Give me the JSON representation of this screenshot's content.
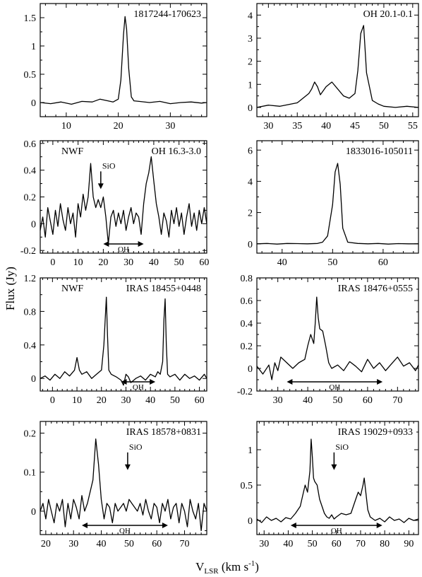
{
  "ylabel": "Flux (Jy)",
  "xlabel_main": "V",
  "xlabel_sub": "LSR",
  "xlabel_unit": " (km s",
  "xlabel_sup": "-1",
  "xlabel_end": ")",
  "chart_data": [
    {
      "type": "line",
      "title": "1817244-170623",
      "tag": "",
      "xlim": [
        5,
        37
      ],
      "ylim": [
        -0.25,
        1.75
      ],
      "xticks": [
        10,
        20,
        30
      ],
      "yticks": [
        0,
        0.5,
        1,
        1.5
      ],
      "series": [
        {
          "x": [
            5,
            7,
            9,
            11,
            13,
            15,
            16.5,
            18,
            19,
            20,
            20.5,
            21,
            21.3,
            21.6,
            22,
            22.5,
            23,
            24,
            26,
            28,
            30,
            32,
            34,
            36,
            37
          ],
          "y": [
            0,
            -0.02,
            0.01,
            -0.03,
            0.02,
            0.01,
            0.06,
            0.03,
            0.01,
            0.06,
            0.4,
            1.2,
            1.52,
            1.3,
            0.6,
            0.1,
            0.03,
            0.02,
            0,
            0.02,
            -0.02,
            0,
            0.01,
            -0.01,
            0
          ]
        }
      ],
      "markers": [],
      "oh": null
    },
    {
      "type": "line",
      "title": "OH 20.1-0.1",
      "tag": "",
      "xlim": [
        28,
        56
      ],
      "ylim": [
        -0.4,
        4.5
      ],
      "xticks": [
        30,
        35,
        40,
        45,
        50,
        55
      ],
      "yticks": [
        0,
        1,
        2,
        3,
        4
      ],
      "series": [
        {
          "x": [
            28,
            30,
            32,
            34,
            35,
            36,
            37,
            37.5,
            38,
            38.5,
            39,
            40,
            41,
            42,
            43,
            44,
            45,
            45.5,
            46,
            46.5,
            47,
            48,
            49,
            50,
            52,
            54,
            56
          ],
          "y": [
            0,
            0.1,
            0.05,
            0.15,
            0.2,
            0.4,
            0.6,
            0.8,
            1.1,
            0.9,
            0.55,
            0.9,
            1.1,
            0.8,
            0.5,
            0.4,
            0.6,
            1.6,
            3.2,
            3.55,
            1.5,
            0.3,
            0.15,
            0.05,
            0,
            0.05,
            0
          ]
        }
      ],
      "markers": [],
      "oh": null
    },
    {
      "type": "line",
      "title": "OH 16.3-3.0",
      "tag": "NWF",
      "xlim": [
        -5,
        61
      ],
      "ylim": [
        -0.22,
        0.62
      ],
      "xticks": [
        0,
        10,
        20,
        30,
        40,
        50,
        60
      ],
      "yticks": [
        -0.2,
        0,
        0.2,
        0.4,
        0.6
      ],
      "series": [
        {
          "x": [
            -5,
            -4,
            -3,
            -2,
            -1,
            0,
            1,
            2,
            3,
            4,
            5,
            6,
            7,
            8,
            9,
            10,
            11,
            12,
            13,
            14,
            15,
            16,
            17,
            18,
            19,
            20,
            21,
            22,
            23,
            24,
            25,
            26,
            27,
            28,
            29,
            30,
            31,
            32,
            33,
            34,
            35,
            36,
            37,
            38,
            39,
            40,
            41,
            42,
            43,
            44,
            45,
            46,
            47,
            48,
            49,
            50,
            51,
            52,
            53,
            54,
            55,
            56,
            57,
            58,
            59,
            60,
            61
          ],
          "y": [
            -0.05,
            0.05,
            -0.1,
            0.12,
            0.02,
            -0.08,
            0.1,
            -0.02,
            0.15,
            0.03,
            -0.05,
            0.12,
            0.0,
            0.08,
            -0.1,
            0.15,
            0.05,
            0.22,
            0.1,
            0.2,
            0.45,
            0.2,
            0.12,
            0.18,
            0.12,
            0.2,
            0.05,
            -0.15,
            0.05,
            0.1,
            -0.02,
            0.08,
            0.0,
            0.1,
            -0.05,
            0.05,
            0.12,
            0.0,
            0.08,
            0.05,
            -0.08,
            0.15,
            0.3,
            0.38,
            0.5,
            0.32,
            0.15,
            0.05,
            -0.08,
            0.08,
            0.02,
            -0.1,
            0.1,
            0.0,
            0.12,
            -0.02,
            0.08,
            -0.08,
            0.05,
            0.15,
            -0.02,
            0.08,
            -0.05,
            0.1,
            0.0,
            0.12,
            0.0
          ]
        }
      ],
      "markers": [
        {
          "label": "SiO",
          "x": 19
        }
      ],
      "oh": {
        "label": "OH",
        "x1": 20,
        "x2": 36
      }
    },
    {
      "type": "line",
      "title": "1833016-105011",
      "tag": "",
      "xlim": [
        35,
        67
      ],
      "ylim": [
        -0.6,
        6.6
      ],
      "xticks": [
        40,
        50,
        60
      ],
      "yticks": [
        0,
        2,
        4,
        6
      ],
      "series": [
        {
          "x": [
            35,
            37,
            39,
            41,
            43,
            45,
            47,
            48,
            49,
            50,
            50.5,
            51,
            51.5,
            52,
            53,
            55,
            57,
            59,
            61,
            63,
            65,
            67
          ],
          "y": [
            0,
            0.02,
            -0.02,
            0.02,
            0.01,
            0,
            0.02,
            0.1,
            0.5,
            2.5,
            4.6,
            5.15,
            3.8,
            1.0,
            0.1,
            0.02,
            0,
            0.02,
            -0.02,
            0.01,
            0,
            0
          ]
        }
      ],
      "markers": [],
      "oh": null
    },
    {
      "type": "line",
      "title": "IRAS 18455+0448",
      "tag": "NWF",
      "xlim": [
        -5,
        63
      ],
      "ylim": [
        -0.15,
        1.2
      ],
      "xticks": [
        0,
        10,
        20,
        30,
        40,
        50,
        60
      ],
      "yticks": [
        0,
        0.4,
        0.8,
        1.2
      ],
      "series": [
        {
          "x": [
            -5,
            -3,
            -1,
            1,
            3,
            5,
            7,
            9,
            10,
            11,
            12,
            14,
            16,
            18,
            20,
            21,
            22,
            22.5,
            23,
            24,
            26,
            28,
            29,
            30,
            31,
            32,
            34,
            36,
            38,
            40,
            42,
            43,
            44,
            45,
            45.5,
            46,
            46.5,
            47,
            48,
            50,
            52,
            54,
            56,
            58,
            60,
            62,
            63
          ],
          "y": [
            0,
            0.03,
            -0.02,
            0.05,
            0.0,
            0.08,
            0.03,
            0.1,
            0.25,
            0.1,
            0.05,
            0.08,
            0.0,
            0.05,
            0.1,
            0.4,
            0.97,
            0.5,
            0.1,
            0.05,
            0.02,
            -0.02,
            -0.08,
            0.05,
            0.02,
            -0.05,
            0.0,
            0.03,
            -0.02,
            0.05,
            0.02,
            0.08,
            0.05,
            0.2,
            0.7,
            0.95,
            0.4,
            0.05,
            0.02,
            0.05,
            -0.02,
            0.05,
            0.0,
            0.03,
            -0.02,
            0.05,
            0.0
          ]
        }
      ],
      "markers": [],
      "oh": {
        "label": "OH",
        "x1": 28,
        "x2": 42
      }
    },
    {
      "type": "line",
      "title": "IRAS 18476+0555",
      "tag": "",
      "xlim": [
        23,
        77
      ],
      "ylim": [
        -0.2,
        0.8
      ],
      "xticks": [
        30,
        40,
        50,
        60,
        70
      ],
      "yticks": [
        -0.2,
        0,
        0.2,
        0.4,
        0.6,
        0.8
      ],
      "series": [
        {
          "x": [
            23,
            25,
            27,
            28,
            29,
            30,
            31,
            33,
            35,
            37,
            39,
            40,
            41,
            42,
            42.5,
            43,
            43.5,
            44,
            45,
            46,
            47,
            48,
            50,
            52,
            54,
            56,
            58,
            60,
            62,
            64,
            66,
            68,
            70,
            72,
            74,
            76,
            77
          ],
          "y": [
            0.02,
            -0.05,
            0.03,
            -0.1,
            0.05,
            -0.02,
            0.1,
            0.05,
            0.0,
            0.05,
            0.08,
            0.2,
            0.3,
            0.22,
            0.4,
            0.63,
            0.45,
            0.35,
            0.33,
            0.2,
            0.05,
            0.0,
            0.03,
            -0.02,
            0.06,
            0.02,
            -0.03,
            0.08,
            0.0,
            0.05,
            -0.02,
            0.04,
            0.1,
            0.02,
            0.05,
            -0.02,
            0.03
          ]
        }
      ],
      "markers": [],
      "oh": {
        "label": "OH",
        "x1": 33,
        "x2": 65
      }
    },
    {
      "type": "line",
      "title": "IRAS 18578+0831",
      "tag": "",
      "xlim": [
        18,
        78
      ],
      "ylim": [
        -0.06,
        0.23
      ],
      "xticks": [
        20,
        30,
        40,
        50,
        60,
        70
      ],
      "yticks": [
        0,
        0.1,
        0.2
      ],
      "series": [
        {
          "x": [
            18,
            19,
            20,
            21,
            22,
            23,
            24,
            25,
            26,
            27,
            28,
            29,
            30,
            31,
            32,
            33,
            34,
            35,
            36,
            37,
            38,
            39,
            40,
            41,
            42,
            43,
            44,
            45,
            46,
            47,
            48,
            49,
            50,
            51,
            52,
            53,
            54,
            55,
            56,
            57,
            58,
            59,
            60,
            61,
            62,
            63,
            64,
            65,
            66,
            67,
            68,
            69,
            70,
            71,
            72,
            73,
            74,
            75,
            76,
            77,
            78
          ],
          "y": [
            0.0,
            0.02,
            -0.02,
            0.03,
            0.0,
            -0.03,
            0.02,
            0.0,
            0.03,
            -0.04,
            0.02,
            -0.02,
            0.03,
            0.01,
            -0.02,
            0.04,
            0.0,
            0.02,
            0.05,
            0.08,
            0.185,
            0.12,
            0.03,
            -0.02,
            0.02,
            0.01,
            -0.03,
            0.02,
            0.0,
            0.01,
            0.02,
            0.0,
            0.03,
            0.02,
            0.01,
            0.0,
            0.02,
            -0.01,
            0.03,
            0.0,
            -0.02,
            0.02,
            0.01,
            -0.03,
            0.02,
            0.0,
            0.03,
            -0.02,
            0.01,
            0.02,
            -0.03,
            0.02,
            0.0,
            -0.04,
            0.03,
            0.0,
            -0.02,
            0.02,
            -0.05,
            0.02,
            0.0
          ]
        }
      ],
      "markers": [
        {
          "label": "SiO",
          "x": 49.5
        }
      ],
      "oh": {
        "label": "OH",
        "x1": 33,
        "x2": 64
      }
    },
    {
      "type": "line",
      "title": "IRAS 19029+0933",
      "tag": "",
      "xlim": [
        27,
        94
      ],
      "ylim": [
        -0.2,
        1.4
      ],
      "xticks": [
        30,
        40,
        50,
        60,
        70,
        80,
        90
      ],
      "yticks": [
        0,
        0.5,
        1
      ],
      "series": [
        {
          "x": [
            27,
            29,
            31,
            33,
            35,
            37,
            39,
            41,
            43,
            45,
            46,
            47,
            48,
            49,
            49.5,
            50,
            50.5,
            51,
            52,
            53,
            54,
            55,
            56,
            57,
            58,
            59,
            60,
            62,
            64,
            66,
            67,
            68,
            69,
            70,
            71,
            71.5,
            72,
            73,
            74,
            76,
            78,
            80,
            82,
            84,
            86,
            88,
            90,
            92,
            94
          ],
          "y": [
            0.02,
            -0.03,
            0.05,
            0.0,
            0.03,
            -0.02,
            0.04,
            0.02,
            0.1,
            0.2,
            0.35,
            0.5,
            0.4,
            0.7,
            1.15,
            0.9,
            0.6,
            0.55,
            0.5,
            0.3,
            0.2,
            0.1,
            0.05,
            0.03,
            0.08,
            0.02,
            0.05,
            0.1,
            0.08,
            0.1,
            0.2,
            0.3,
            0.4,
            0.35,
            0.5,
            0.6,
            0.45,
            0.15,
            0.05,
            0.0,
            0.03,
            -0.02,
            0.05,
            0.0,
            0.02,
            -0.03,
            0.03,
            0.0,
            0.02
          ]
        }
      ],
      "markers": [
        {
          "label": "SiO",
          "x": 59
        }
      ],
      "oh": {
        "label": "OH",
        "x1": 41,
        "x2": 79
      }
    }
  ]
}
